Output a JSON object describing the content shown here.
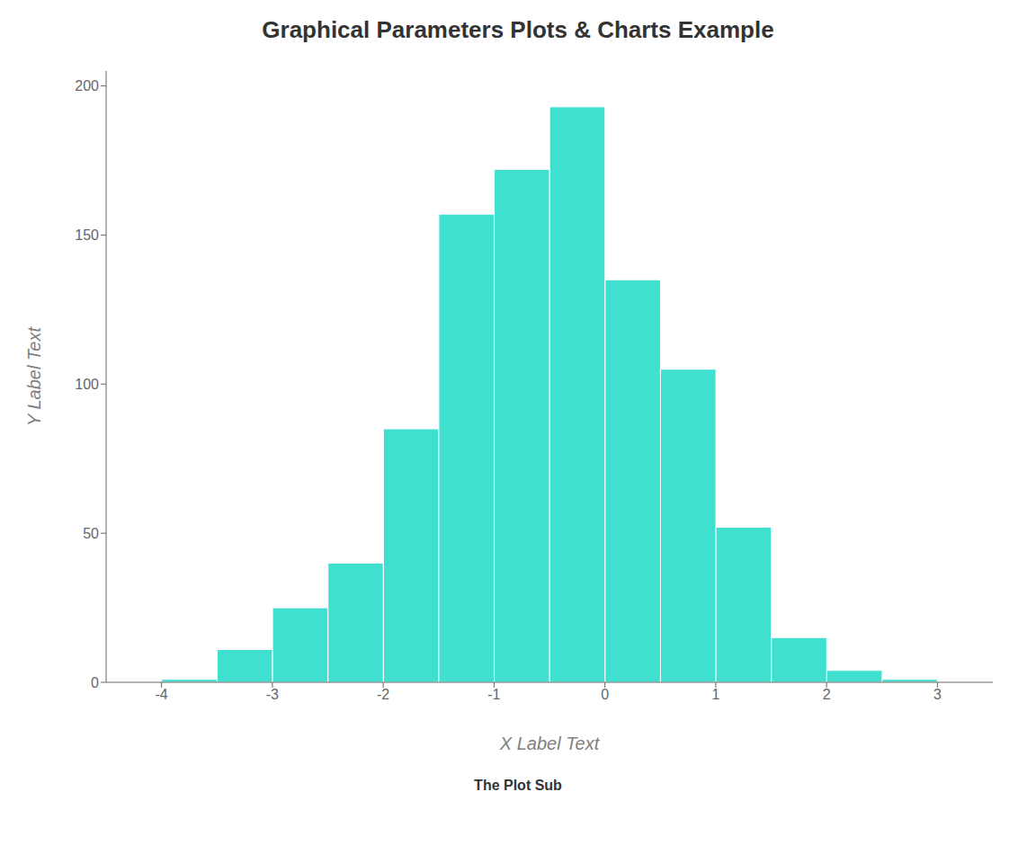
{
  "chart_data": {
    "type": "histogram",
    "title": "Graphical Parameters Plots & Charts Example",
    "subtitle": "The Plot Sub",
    "xlabel": "X Label Text",
    "ylabel": "Y Label Text",
    "bins": [
      -4,
      -3.5,
      -3,
      -2.5,
      -2,
      -1.5,
      -1,
      -0.5,
      0,
      0.5,
      1,
      1.5,
      2,
      2.5,
      3
    ],
    "values": [
      1,
      11,
      25,
      40,
      85,
      157,
      172,
      193,
      135,
      105,
      52,
      15,
      4,
      1
    ],
    "color": "#40E0D0",
    "xlim": [
      -4.5,
      3.5
    ],
    "ylim": [
      0,
      205
    ],
    "xticks": [
      -4,
      -3,
      -2,
      -1,
      0,
      1,
      2,
      3
    ],
    "yticks": [
      0,
      50,
      100,
      150,
      200
    ]
  }
}
